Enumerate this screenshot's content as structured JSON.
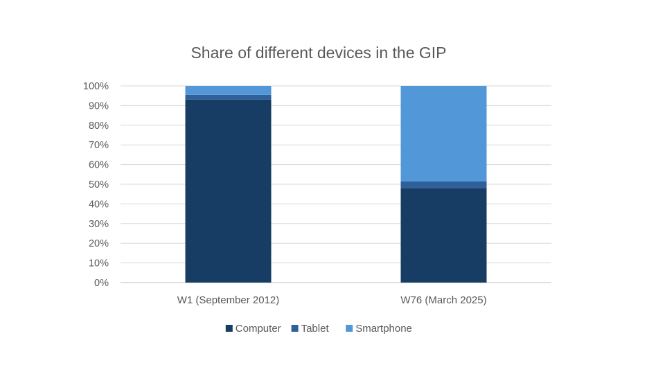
{
  "chart_data": {
    "type": "bar",
    "stacked": true,
    "title": "Share of different devices in the GIP",
    "xlabel": "",
    "ylabel": "",
    "categories": [
      "W1 (September 2012)",
      "W76 (March 2025)"
    ],
    "series": [
      {
        "name": "Computer",
        "color": "#183D64",
        "values": [
          0.93,
          0.48
        ]
      },
      {
        "name": "Tablet",
        "color": "#2F6099",
        "values": [
          0.025,
          0.035
        ]
      },
      {
        "name": "Smartphone",
        "color": "#5298D9",
        "values": [
          0.045,
          0.485
        ]
      }
    ],
    "ylim": [
      0,
      1
    ],
    "y_ticks": [
      "0%",
      "10%",
      "20%",
      "30%",
      "40%",
      "50%",
      "60%",
      "70%",
      "80%",
      "90%",
      "100%"
    ],
    "grid": true,
    "legend": "bottom"
  }
}
